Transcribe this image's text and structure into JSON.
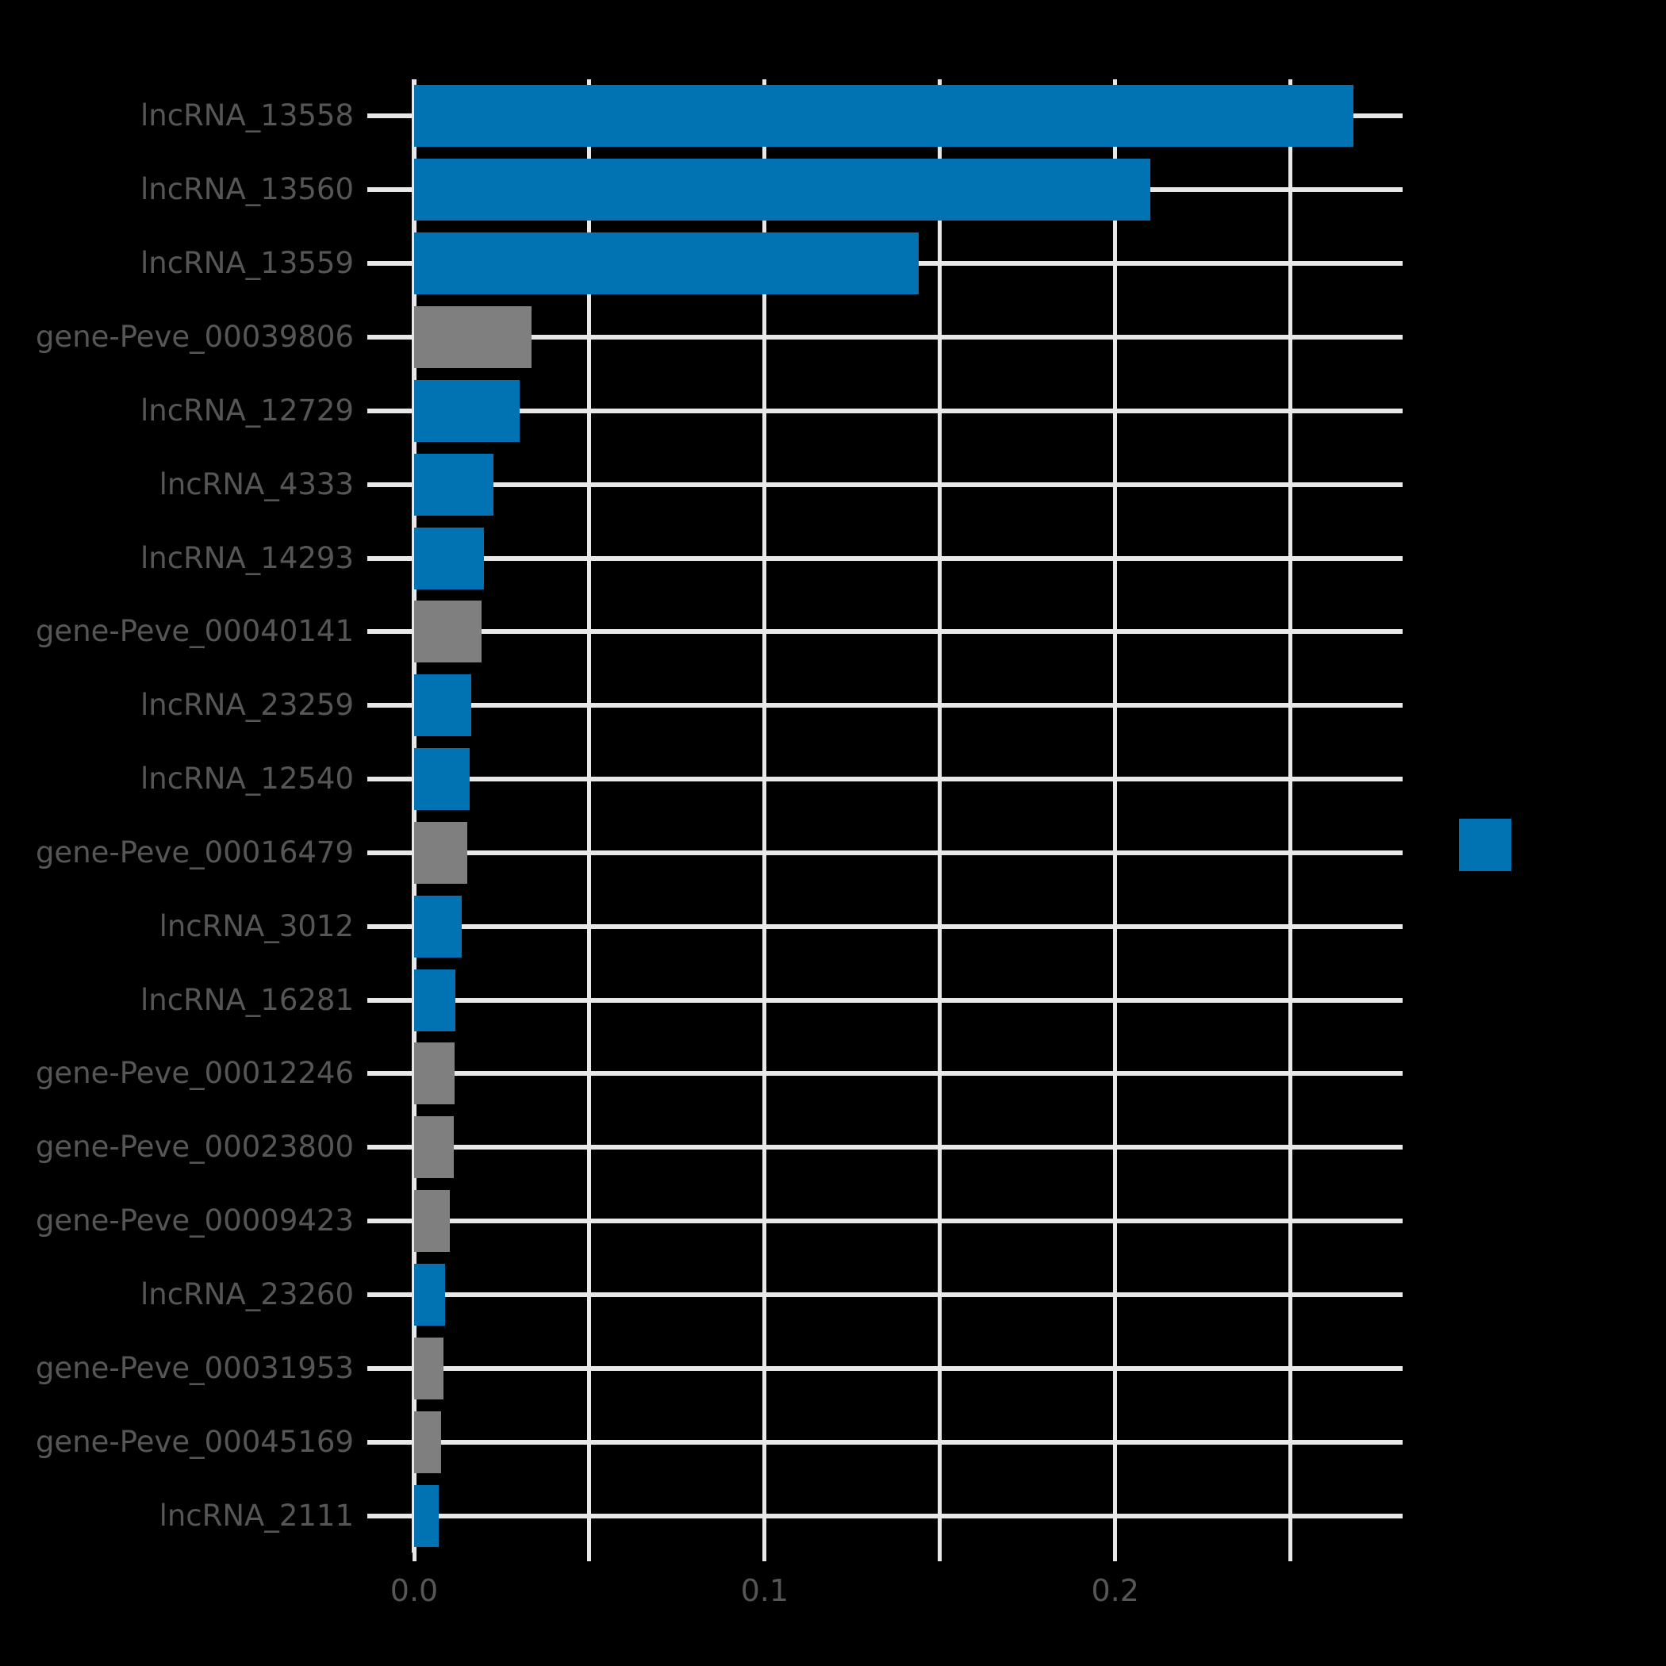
{
  "figure": {
    "background": "#000000",
    "text_color": "#565656",
    "grid_color": "#e8e8e8",
    "legend": {
      "swatch_color": "#0173b2",
      "position": "center-right"
    }
  },
  "chart_data": {
    "type": "bar",
    "orientation": "horizontal",
    "title": "",
    "xlabel": "",
    "ylabel": "",
    "grid": true,
    "xlim": [
      0,
      0.282
    ],
    "x_gridline_values": [
      0,
      0.05,
      0.1,
      0.15,
      0.2,
      0.25
    ],
    "x_tick_labels": [
      {
        "value": 0.0,
        "label": "0.0"
      },
      {
        "value": 0.1,
        "label": "0.1"
      },
      {
        "value": 0.2,
        "label": "0.2"
      }
    ],
    "group_colors": {
      "lncRNA": "#0173b2",
      "gene": "#7f7f7f"
    },
    "bars": [
      {
        "label": "lncRNA_13558",
        "value": 0.268,
        "group": "lncRNA"
      },
      {
        "label": "lncRNA_13560",
        "value": 0.21,
        "group": "lncRNA"
      },
      {
        "label": "lncRNA_13559",
        "value": 0.144,
        "group": "lncRNA"
      },
      {
        "label": "gene-Peve_00039806",
        "value": 0.0334,
        "group": "gene"
      },
      {
        "label": "lncRNA_12729",
        "value": 0.03,
        "group": "lncRNA"
      },
      {
        "label": "lncRNA_4333",
        "value": 0.0227,
        "group": "lncRNA"
      },
      {
        "label": "lncRNA_14293",
        "value": 0.02,
        "group": "lncRNA"
      },
      {
        "label": "gene-Peve_00040141",
        "value": 0.0193,
        "group": "gene"
      },
      {
        "label": "lncRNA_23259",
        "value": 0.0164,
        "group": "lncRNA"
      },
      {
        "label": "lncRNA_12540",
        "value": 0.0159,
        "group": "lncRNA"
      },
      {
        "label": "gene-Peve_00016479",
        "value": 0.0152,
        "group": "gene"
      },
      {
        "label": "lncRNA_3012",
        "value": 0.0136,
        "group": "lncRNA"
      },
      {
        "label": "lncRNA_16281",
        "value": 0.0118,
        "group": "lncRNA"
      },
      {
        "label": "gene-Peve_00012246",
        "value": 0.0115,
        "group": "gene"
      },
      {
        "label": "gene-Peve_00023800",
        "value": 0.0113,
        "group": "gene"
      },
      {
        "label": "gene-Peve_00009423",
        "value": 0.0102,
        "group": "gene"
      },
      {
        "label": "lncRNA_23260",
        "value": 0.0089,
        "group": "lncRNA"
      },
      {
        "label": "gene-Peve_00031953",
        "value": 0.0084,
        "group": "gene"
      },
      {
        "label": "gene-Peve_00045169",
        "value": 0.0077,
        "group": "gene"
      },
      {
        "label": "lncRNA_2111",
        "value": 0.007,
        "group": "lncRNA"
      }
    ]
  }
}
